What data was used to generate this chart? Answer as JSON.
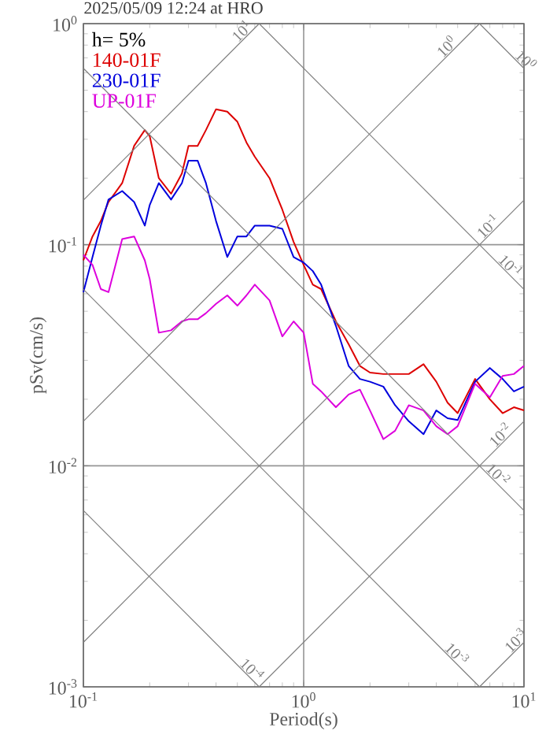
{
  "chart_data": {
    "type": "line",
    "title": "2025/05/09 12:24 at HRO",
    "xlabel": "Period(s)",
    "ylabel": "pSv(cm/s)",
    "annotations": [
      "h= 5%"
    ],
    "log": "xy",
    "grid": true,
    "legend": "top left",
    "xlim": [
      0.1,
      10
    ],
    "ylim": [
      0.001,
      1
    ],
    "xticks": [
      {
        "value": 0.1,
        "label": "10$^{-1}$"
      },
      {
        "value": 1,
        "label": "10$^{0}$"
      },
      {
        "value": 10,
        "label": "10$^{1}$"
      }
    ],
    "yticks": [
      {
        "value": 0.001,
        "label": "10$^{-3}$"
      },
      {
        "value": 0.01,
        "label": "10$^{-2}$"
      },
      {
        "value": 0.1,
        "label": "10$^{-1}$"
      },
      {
        "value": 1,
        "label": "10$^{0}$"
      }
    ],
    "x": [
      0.1,
      0.11,
      0.12,
      0.13,
      0.15,
      0.17,
      0.19,
      0.2,
      0.22,
      0.25,
      0.28,
      0.3,
      0.33,
      0.36,
      0.4,
      0.45,
      0.5,
      0.55,
      0.6,
      0.7,
      0.8,
      0.9,
      1,
      1.1,
      1.2,
      1.4,
      1.6,
      1.8,
      2,
      2.3,
      2.6,
      3,
      3.5,
      4,
      4.5,
      5,
      6,
      7,
      8,
      9,
      10
    ],
    "series": [
      {
        "name": "140-01F",
        "color": "#dd0000",
        "values": [
          0.085,
          0.109,
          0.128,
          0.156,
          0.19,
          0.28,
          0.33,
          0.31,
          0.2,
          0.17,
          0.21,
          0.28,
          0.28,
          0.33,
          0.41,
          0.4,
          0.36,
          0.29,
          0.25,
          0.2,
          0.144,
          0.103,
          0.081,
          0.066,
          0.063,
          0.045,
          0.0355,
          0.0283,
          0.0264,
          0.026,
          0.026,
          0.026,
          0.0288,
          0.024,
          0.0193,
          0.0173,
          0.0247,
          0.02,
          0.0173,
          0.0184,
          0.0178
        ]
      },
      {
        "name": "230-01F",
        "color": "#0000dd",
        "values": [
          0.061,
          0.088,
          0.122,
          0.16,
          0.175,
          0.156,
          0.122,
          0.151,
          0.19,
          0.16,
          0.19,
          0.24,
          0.24,
          0.19,
          0.128,
          0.088,
          0.109,
          0.109,
          0.122,
          0.122,
          0.118,
          0.088,
          0.083,
          0.076,
          0.066,
          0.043,
          0.0283,
          0.0247,
          0.024,
          0.0228,
          0.0188,
          0.0159,
          0.0139,
          0.0178,
          0.0164,
          0.0161,
          0.024,
          0.0277,
          0.0247,
          0.0217,
          0.0228
        ]
      },
      {
        "name": "UP-01F",
        "color": "#dd00dd",
        "values": [
          0.09,
          0.081,
          0.063,
          0.061,
          0.106,
          0.109,
          0.085,
          0.07,
          0.04,
          0.041,
          0.045,
          0.046,
          0.046,
          0.049,
          0.054,
          0.059,
          0.053,
          0.059,
          0.066,
          0.056,
          0.0385,
          0.045,
          0.04,
          0.0235,
          0.0217,
          0.0184,
          0.021,
          0.0221,
          0.0178,
          0.0132,
          0.0144,
          0.0188,
          0.0178,
          0.0151,
          0.0139,
          0.0151,
          0.0235,
          0.0204,
          0.0255,
          0.026,
          0.0283
        ]
      },
      {
        "name": "10$^{1}$",
        "color": "#808080",
        "x": [
          0.1,
          0.628
        ],
        "values": [
          0.159,
          1
        ]
      },
      {
        "name": "10$^{0}$",
        "color": "#808080",
        "x": [
          0.1,
          6.283
        ],
        "values": [
          0.0159,
          1
        ]
      },
      {
        "name": "10$^{-1}$",
        "color": "#808080",
        "x": [
          0.1,
          10
        ],
        "values": [
          0.00159,
          0.159
        ]
      },
      {
        "name": "10$^{-2}$",
        "color": "#808080",
        "x": [
          0.628,
          10
        ],
        "values": [
          0.001,
          0.0159
        ]
      },
      {
        "name": "10$^{-3}$",
        "color": "#808080",
        "x": [
          6.283,
          10
        ],
        "values": [
          0.001,
          0.00159
        ]
      },
      {
        "name": "10$^{0}$",
        "color": "#808080",
        "x": [
          6.283,
          10
        ],
        "values": [
          1,
          0.628
        ]
      },
      {
        "name": "10$^{-1}$",
        "color": "#808080",
        "x": [
          0.628,
          10
        ],
        "values": [
          1,
          0.0628
        ]
      },
      {
        "name": "10$^{-2}$",
        "color": "#808080",
        "x": [
          0.1,
          10
        ],
        "values": [
          0.628,
          0.00628
        ]
      },
      {
        "name": "10$^{-3}$",
        "color": "#808080",
        "x": [
          0.1,
          6.283
        ],
        "values": [
          0.0628,
          0.001
        ]
      },
      {
        "name": "10$^{-4}$",
        "color": "#808080",
        "x": [
          0.1,
          0.628
        ],
        "values": [
          0.00628,
          0.001
        ]
      }
    ]
  }
}
